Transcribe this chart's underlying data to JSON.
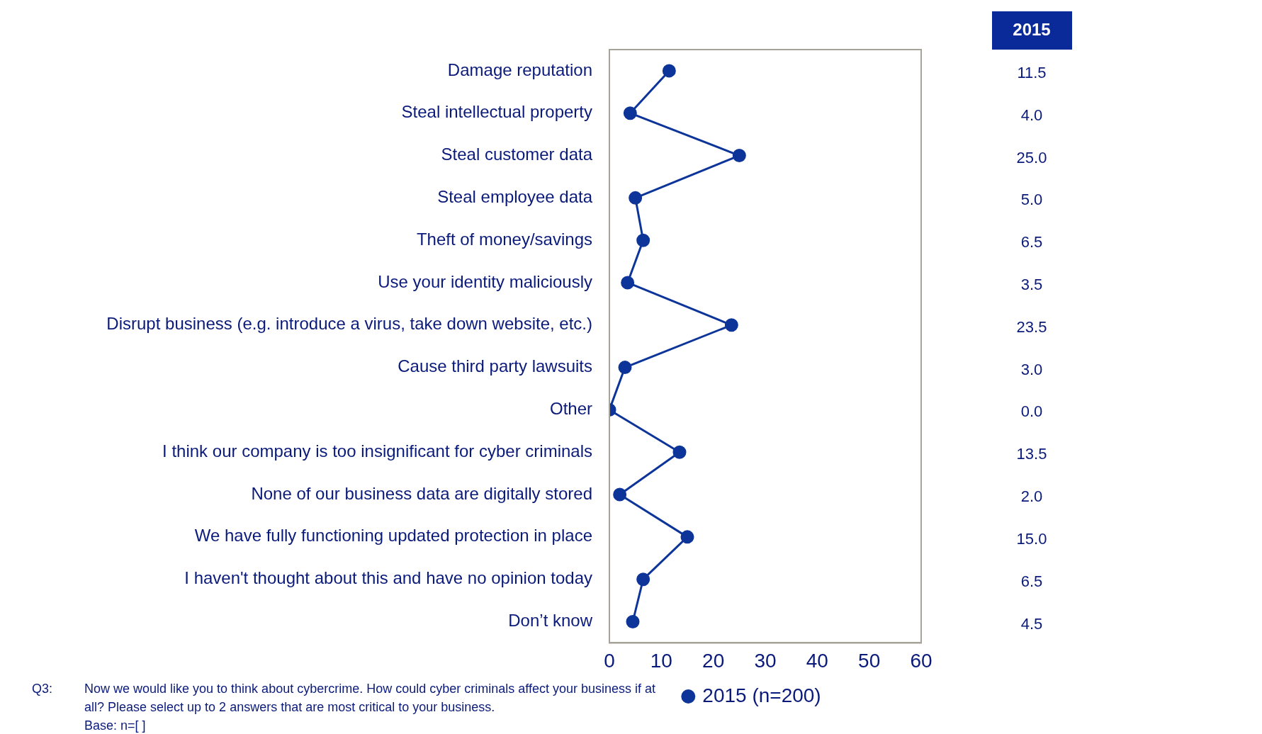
{
  "chart_data": {
    "type": "line",
    "orientation": "horizontal",
    "categories": [
      "Damage reputation",
      "Steal intellectual property",
      "Steal customer data",
      "Steal employee data",
      "Theft of money/savings",
      "Use your identity maliciously",
      "Disrupt business (e.g. introduce a virus, take down website, etc.)",
      "Cause third party lawsuits",
      "Other",
      "I think our company is too insignificant for cyber criminals",
      "None of our business data are digitally stored",
      "We have fully functioning updated protection in place",
      "I haven't thought about this and have no opinion today",
      "Don’t know"
    ],
    "series": [
      {
        "name": "2015 (n=200)",
        "color": "#0d3599",
        "values": [
          11.5,
          4.0,
          25.0,
          5.0,
          6.5,
          3.5,
          23.5,
          3.0,
          0.0,
          13.5,
          2.0,
          15.0,
          6.5,
          4.5
        ],
        "value_labels": [
          "11.5",
          "4.0",
          "25.0",
          "5.0",
          "6.5",
          "3.5",
          "23.5",
          "3.0",
          "0.0",
          "13.5",
          "2.0",
          "15.0",
          "6.5",
          "4.5"
        ]
      }
    ],
    "xlim": [
      0,
      60
    ],
    "xticks": [
      0,
      10,
      20,
      30,
      40,
      50,
      60
    ],
    "grid": false,
    "legend": "bottom",
    "marker": "circle",
    "line_style": "solid",
    "annotations": [
      "2015",
      "Q3:",
      "Now we would like you to think about cybercrime. How could cyber criminals affect your business if at all? Please select up to 2 answers that are most critical to your business.",
      "Base: n=[ ]"
    ]
  }
}
